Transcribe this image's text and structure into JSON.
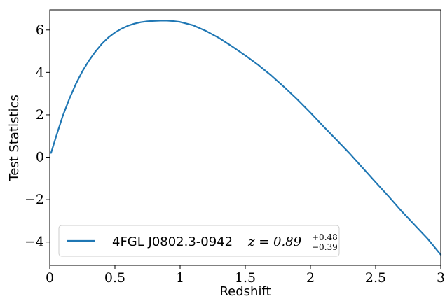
{
  "chart_data": {
    "type": "line",
    "xlabel": "Redshift",
    "ylabel": "Test Statistics",
    "xlim": [
      0,
      3
    ],
    "ylim": [
      -5.1,
      6.95
    ],
    "x_ticks": [
      0,
      0.5,
      1,
      1.5,
      2,
      2.5,
      3
    ],
    "x_tick_labels": [
      "0",
      "0.5",
      "1",
      "1.5",
      "2",
      "2.5",
      "3"
    ],
    "y_ticks": [
      -4,
      -2,
      0,
      2,
      4,
      6
    ],
    "y_tick_labels": [
      "−4",
      "−2",
      "0",
      "2",
      "4",
      "6"
    ],
    "grid": false,
    "legend_position": "lower-left",
    "series": [
      {
        "name": "4FGL J0802.3-0942",
        "color": "#1f77b4",
        "x": [
          0.01,
          0.05,
          0.1,
          0.15,
          0.2,
          0.25,
          0.3,
          0.35,
          0.4,
          0.45,
          0.5,
          0.55,
          0.6,
          0.65,
          0.7,
          0.75,
          0.8,
          0.85,
          0.9,
          0.95,
          1.0,
          1.1,
          1.2,
          1.3,
          1.4,
          1.5,
          1.6,
          1.7,
          1.8,
          1.9,
          2.0,
          2.1,
          2.2,
          2.3,
          2.4,
          2.5,
          2.6,
          2.7,
          2.8,
          2.9,
          3.0
        ],
        "y": [
          0.2,
          1.0,
          1.95,
          2.75,
          3.45,
          4.05,
          4.55,
          4.98,
          5.35,
          5.65,
          5.88,
          6.06,
          6.2,
          6.3,
          6.37,
          6.41,
          6.43,
          6.44,
          6.44,
          6.42,
          6.38,
          6.22,
          5.95,
          5.62,
          5.22,
          4.8,
          4.35,
          3.85,
          3.3,
          2.72,
          2.1,
          1.45,
          0.82,
          0.18,
          -0.5,
          -1.18,
          -1.85,
          -2.55,
          -3.2,
          -3.85,
          -4.6
        ]
      }
    ],
    "legend": {
      "source_label": "4FGL J0802.3-0942",
      "z_prefix": "z = 0.89",
      "z_plus": "+0.48",
      "z_minus": "−0.39"
    }
  }
}
